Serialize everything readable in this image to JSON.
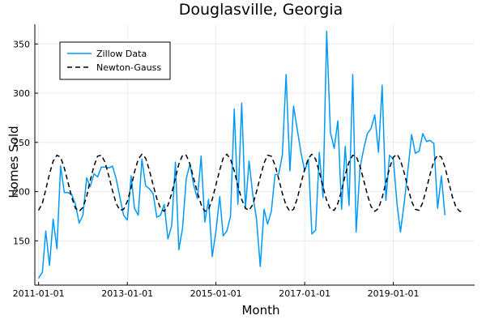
{
  "chart_data": {
    "type": "line",
    "title": "Douglasville, Georgia",
    "xlabel": "Month",
    "ylabel": "Homes Sold",
    "x_axis": {
      "type": "date",
      "range": [
        "2010-12-01",
        "2020-11-01"
      ],
      "ticks": [
        "2011-01-01",
        "2013-01-01",
        "2015-01-01",
        "2017-01-01",
        "2019-01-01"
      ]
    },
    "y_axis": {
      "range": [
        105,
        370
      ],
      "ticks": [
        150,
        200,
        250,
        300,
        350
      ]
    },
    "grid": true,
    "legend_position": "top-left",
    "series": [
      {
        "name": "Zillow Data",
        "style": "solid",
        "color": "#009AFA",
        "points": [
          [
            "2011-01-01",
            112
          ],
          [
            "2011-02-01",
            118
          ],
          [
            "2011-03-01",
            160
          ],
          [
            "2011-04-01",
            125
          ],
          [
            "2011-05-01",
            172
          ],
          [
            "2011-06-01",
            142
          ],
          [
            "2011-07-01",
            226
          ],
          [
            "2011-08-01",
            199
          ],
          [
            "2011-09-01",
            199
          ],
          [
            "2011-10-01",
            197
          ],
          [
            "2011-11-01",
            187
          ],
          [
            "2011-12-01",
            168
          ],
          [
            "2012-01-01",
            176
          ],
          [
            "2012-02-01",
            214
          ],
          [
            "2012-03-01",
            205
          ],
          [
            "2012-04-01",
            218
          ],
          [
            "2012-05-01",
            215
          ],
          [
            "2012-06-01",
            225
          ],
          [
            "2012-07-01",
            225
          ],
          [
            "2012-08-01",
            224
          ],
          [
            "2012-09-01",
            226
          ],
          [
            "2012-10-01",
            213
          ],
          [
            "2012-11-01",
            194
          ],
          [
            "2012-12-01",
            176
          ],
          [
            "2013-01-01",
            171
          ],
          [
            "2013-02-01",
            216
          ],
          [
            "2013-03-01",
            183
          ],
          [
            "2013-04-01",
            176
          ],
          [
            "2013-05-01",
            233
          ],
          [
            "2013-06-01",
            206
          ],
          [
            "2013-07-01",
            203
          ],
          [
            "2013-08-01",
            198
          ],
          [
            "2013-09-01",
            174
          ],
          [
            "2013-10-01",
            176
          ],
          [
            "2013-11-01",
            187
          ],
          [
            "2013-12-01",
            152
          ],
          [
            "2014-01-01",
            165
          ],
          [
            "2014-02-01",
            230
          ],
          [
            "2014-03-01",
            141
          ],
          [
            "2014-04-01",
            163
          ],
          [
            "2014-05-01",
            213
          ],
          [
            "2014-06-01",
            228
          ],
          [
            "2014-07-01",
            207
          ],
          [
            "2014-08-01",
            193
          ],
          [
            "2014-09-01",
            236
          ],
          [
            "2014-10-01",
            169
          ],
          [
            "2014-11-01",
            192
          ],
          [
            "2014-12-01",
            134
          ],
          [
            "2015-01-01",
            160
          ],
          [
            "2015-02-01",
            195
          ],
          [
            "2015-03-01",
            155
          ],
          [
            "2015-04-01",
            160
          ],
          [
            "2015-05-01",
            175
          ],
          [
            "2015-06-01",
            284
          ],
          [
            "2015-07-01",
            187
          ],
          [
            "2015-08-01",
            290
          ],
          [
            "2015-09-01",
            183
          ],
          [
            "2015-10-01",
            231
          ],
          [
            "2015-11-01",
            196
          ],
          [
            "2015-12-01",
            172
          ],
          [
            "2016-01-01",
            124
          ],
          [
            "2016-02-01",
            182
          ],
          [
            "2016-03-01",
            167
          ],
          [
            "2016-04-01",
            180
          ],
          [
            "2016-05-01",
            217
          ],
          [
            "2016-06-01",
            218
          ],
          [
            "2016-07-01",
            237
          ],
          [
            "2016-08-01",
            319
          ],
          [
            "2016-09-01",
            221
          ],
          [
            "2016-10-01",
            287
          ],
          [
            "2016-11-01",
            263
          ],
          [
            "2016-12-01",
            240
          ],
          [
            "2017-01-01",
            221
          ],
          [
            "2017-02-01",
            233
          ],
          [
            "2017-03-01",
            157
          ],
          [
            "2017-04-01",
            161
          ],
          [
            "2017-05-01",
            240
          ],
          [
            "2017-06-01",
            194
          ],
          [
            "2017-07-01",
            363
          ],
          [
            "2017-08-01",
            260
          ],
          [
            "2017-09-01",
            244
          ],
          [
            "2017-10-01",
            272
          ],
          [
            "2017-11-01",
            182
          ],
          [
            "2017-12-01",
            246
          ],
          [
            "2018-01-01",
            186
          ],
          [
            "2018-02-01",
            319
          ],
          [
            "2018-03-01",
            159
          ],
          [
            "2018-04-01",
            224
          ],
          [
            "2018-05-01",
            243
          ],
          [
            "2018-06-01",
            259
          ],
          [
            "2018-07-01",
            264
          ],
          [
            "2018-08-01",
            278
          ],
          [
            "2018-09-01",
            240
          ],
          [
            "2018-10-01",
            308
          ],
          [
            "2018-11-01",
            191
          ],
          [
            "2018-12-01",
            237
          ],
          [
            "2019-01-01",
            233
          ],
          [
            "2019-02-01",
            187
          ],
          [
            "2019-03-01",
            159
          ],
          [
            "2019-04-01",
            189
          ],
          [
            "2019-05-01",
            222
          ],
          [
            "2019-06-01",
            258
          ],
          [
            "2019-07-01",
            239
          ],
          [
            "2019-08-01",
            241
          ],
          [
            "2019-09-01",
            259
          ],
          [
            "2019-10-01",
            251
          ],
          [
            "2019-11-01",
            252
          ],
          [
            "2019-12-01",
            249
          ],
          [
            "2020-01-01",
            183
          ],
          [
            "2020-02-01",
            216
          ],
          [
            "2020-03-01",
            176
          ]
        ]
      },
      {
        "name": "Newton-Gauss",
        "style": "dashed",
        "color": "#000000",
        "points": [
          [
            "2011-01-01",
            181
          ],
          [
            "2011-02-01",
            188
          ],
          [
            "2011-03-01",
            202
          ],
          [
            "2011-04-01",
            218
          ],
          [
            "2011-05-01",
            231
          ],
          [
            "2011-06-01",
            237
          ],
          [
            "2011-07-01",
            235
          ],
          [
            "2011-08-01",
            224
          ],
          [
            "2011-09-01",
            209
          ],
          [
            "2011-10-01",
            194
          ],
          [
            "2011-11-01",
            183
          ],
          [
            "2011-12-01",
            180
          ],
          [
            "2012-01-01",
            184
          ],
          [
            "2012-02-01",
            195
          ],
          [
            "2012-03-01",
            211
          ],
          [
            "2012-04-01",
            226
          ],
          [
            "2012-05-01",
            236
          ],
          [
            "2012-06-01",
            237
          ],
          [
            "2012-07-01",
            230
          ],
          [
            "2012-08-01",
            216
          ],
          [
            "2012-09-01",
            201
          ],
          [
            "2012-10-01",
            188
          ],
          [
            "2012-11-01",
            181
          ],
          [
            "2012-12-01",
            182
          ],
          [
            "2013-01-01",
            190
          ],
          [
            "2013-02-01",
            204
          ],
          [
            "2013-03-01",
            220
          ],
          [
            "2013-04-01",
            233
          ],
          [
            "2013-05-01",
            238
          ],
          [
            "2013-06-01",
            234
          ],
          [
            "2013-07-01",
            222
          ],
          [
            "2013-08-01",
            207
          ],
          [
            "2013-09-01",
            193
          ],
          [
            "2013-10-01",
            183
          ],
          [
            "2013-11-01",
            180
          ],
          [
            "2013-12-01",
            186
          ],
          [
            "2014-01-01",
            198
          ],
          [
            "2014-02-01",
            214
          ],
          [
            "2014-03-01",
            228
          ],
          [
            "2014-04-01",
            237
          ],
          [
            "2014-05-01",
            237
          ],
          [
            "2014-06-01",
            228
          ],
          [
            "2014-07-01",
            214
          ],
          [
            "2014-08-01",
            199
          ],
          [
            "2014-09-01",
            187
          ],
          [
            "2014-10-01",
            180
          ],
          [
            "2014-11-01",
            182
          ],
          [
            "2014-12-01",
            192
          ],
          [
            "2015-01-01",
            207
          ],
          [
            "2015-02-01",
            222
          ],
          [
            "2015-03-01",
            234
          ],
          [
            "2015-04-01",
            238
          ],
          [
            "2015-05-01",
            233
          ],
          [
            "2015-06-01",
            221
          ],
          [
            "2015-07-01",
            206
          ],
          [
            "2015-08-01",
            192
          ],
          [
            "2015-09-01",
            183
          ],
          [
            "2015-10-01",
            181
          ],
          [
            "2015-11-01",
            187
          ],
          [
            "2015-12-01",
            200
          ],
          [
            "2016-01-01",
            215
          ],
          [
            "2016-02-01",
            229
          ],
          [
            "2016-03-01",
            237
          ],
          [
            "2016-04-01",
            236
          ],
          [
            "2016-05-01",
            227
          ],
          [
            "2016-06-01",
            213
          ],
          [
            "2016-07-01",
            198
          ],
          [
            "2016-08-01",
            186
          ],
          [
            "2016-09-01",
            180
          ],
          [
            "2016-10-01",
            182
          ],
          [
            "2016-11-01",
            193
          ],
          [
            "2016-12-01",
            208
          ],
          [
            "2017-01-01",
            223
          ],
          [
            "2017-02-01",
            234
          ],
          [
            "2017-03-01",
            238
          ],
          [
            "2017-04-01",
            233
          ],
          [
            "2017-05-01",
            220
          ],
          [
            "2017-06-01",
            205
          ],
          [
            "2017-07-01",
            191
          ],
          [
            "2017-08-01",
            182
          ],
          [
            "2017-09-01",
            181
          ],
          [
            "2017-10-01",
            188
          ],
          [
            "2017-11-01",
            201
          ],
          [
            "2017-12-01",
            217
          ],
          [
            "2018-01-01",
            230
          ],
          [
            "2018-02-01",
            237
          ],
          [
            "2018-03-01",
            236
          ],
          [
            "2018-04-01",
            226
          ],
          [
            "2018-05-01",
            212
          ],
          [
            "2018-06-01",
            197
          ],
          [
            "2018-07-01",
            185
          ],
          [
            "2018-08-01",
            180
          ],
          [
            "2018-09-01",
            183
          ],
          [
            "2018-10-01",
            194
          ],
          [
            "2018-11-01",
            209
          ],
          [
            "2018-12-01",
            224
          ],
          [
            "2019-01-01",
            235
          ],
          [
            "2019-02-01",
            238
          ],
          [
            "2019-03-01",
            232
          ],
          [
            "2019-04-01",
            219
          ],
          [
            "2019-05-01",
            204
          ],
          [
            "2019-06-01",
            190
          ],
          [
            "2019-07-01",
            182
          ],
          [
            "2019-08-01",
            181
          ],
          [
            "2019-09-01",
            189
          ],
          [
            "2019-10-01",
            203
          ],
          [
            "2019-11-01",
            218
          ],
          [
            "2019-12-01",
            231
          ],
          [
            "2020-01-01",
            237
          ],
          [
            "2020-02-01",
            235
          ],
          [
            "2020-03-01",
            225
          ],
          [
            "2020-04-01",
            210
          ],
          [
            "2020-05-01",
            195
          ],
          [
            "2020-06-01",
            184
          ],
          [
            "2020-07-01",
            180
          ],
          [
            "2020-08-01",
            180
          ]
        ]
      }
    ]
  }
}
